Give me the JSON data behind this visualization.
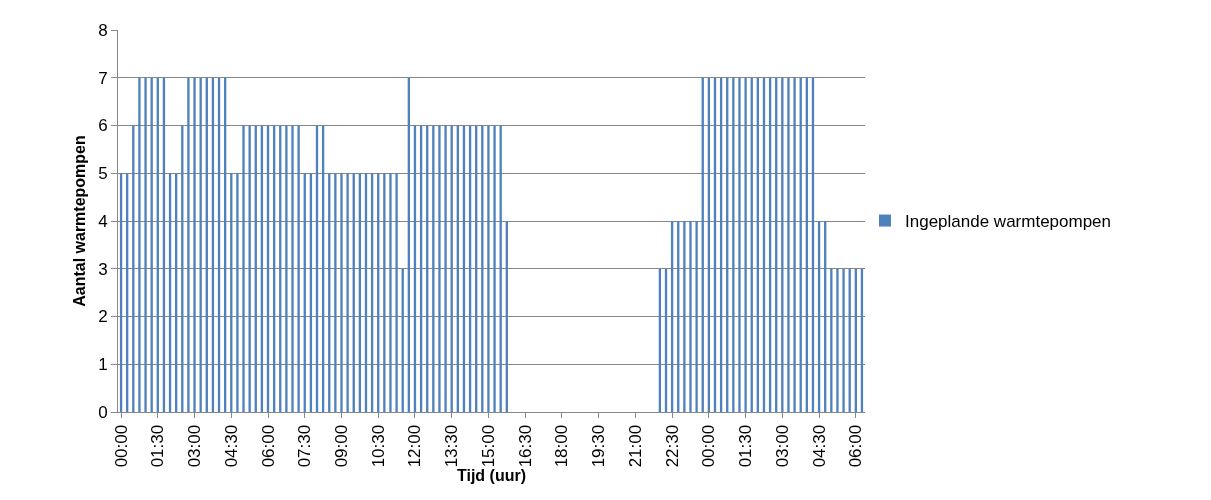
{
  "chart_data": {
    "type": "bar",
    "xlabel": "Tijd (uur)",
    "ylabel": "Aantal warmtepompen",
    "categories": [
      "00:00",
      null,
      null,
      null,
      null,
      null,
      "01:30",
      null,
      null,
      null,
      null,
      null,
      "03:00",
      null,
      null,
      null,
      null,
      null,
      "04:30",
      null,
      null,
      null,
      null,
      null,
      "06:00",
      null,
      null,
      null,
      null,
      null,
      "07:30",
      null,
      null,
      null,
      null,
      null,
      "09:00",
      null,
      null,
      null,
      null,
      null,
      "10:30",
      null,
      null,
      null,
      null,
      null,
      "12:00",
      null,
      null,
      null,
      null,
      null,
      "13:30",
      null,
      null,
      null,
      null,
      null,
      "15:00",
      null,
      null,
      null,
      null,
      null,
      "16:30",
      null,
      null,
      null,
      null,
      null,
      "18:00",
      null,
      null,
      null,
      null,
      null,
      "19:30",
      null,
      null,
      null,
      null,
      null,
      "21:00",
      null,
      null,
      null,
      null,
      null,
      "22:30",
      null,
      null,
      null,
      null,
      null,
      "00:00",
      null,
      null,
      null,
      null,
      null,
      "01:30",
      null,
      null,
      null,
      null,
      null,
      "03:00",
      null,
      null,
      null,
      null,
      null,
      "04:30",
      null,
      null,
      null,
      null,
      null,
      "06:00",
      null
    ],
    "series": [
      {
        "name": "Ingeplande warmtepompen",
        "color": "#4f81bd",
        "values": [
          5,
          5,
          6,
          7,
          7,
          7,
          7,
          7,
          5,
          5,
          6,
          7,
          7,
          7,
          7,
          7,
          7,
          7,
          5,
          5,
          6,
          6,
          6,
          6,
          6,
          6,
          6,
          6,
          6,
          6,
          5,
          5,
          6,
          6,
          5,
          5,
          5,
          5,
          5,
          5,
          5,
          5,
          5,
          5,
          5,
          5,
          3,
          7,
          6,
          6,
          6,
          6,
          6,
          6,
          6,
          6,
          6,
          6,
          6,
          6,
          6,
          6,
          6,
          4,
          0,
          0,
          0,
          0,
          0,
          0,
          0,
          0,
          0,
          0,
          0,
          0,
          0,
          0,
          0,
          0,
          0,
          0,
          0,
          0,
          0,
          0,
          0,
          0,
          3,
          3,
          4,
          4,
          4,
          4,
          4,
          7,
          7,
          7,
          7,
          7,
          7,
          7,
          7,
          7,
          7,
          7,
          7,
          7,
          7,
          7,
          7,
          7,
          7,
          7,
          4,
          4,
          3,
          3,
          3,
          3,
          3,
          3
        ]
      }
    ],
    "ylim": [
      0,
      8
    ],
    "yticks": [
      0,
      1,
      2,
      3,
      4,
      5,
      6,
      7,
      8
    ],
    "grid": "y",
    "legend": "right"
  }
}
